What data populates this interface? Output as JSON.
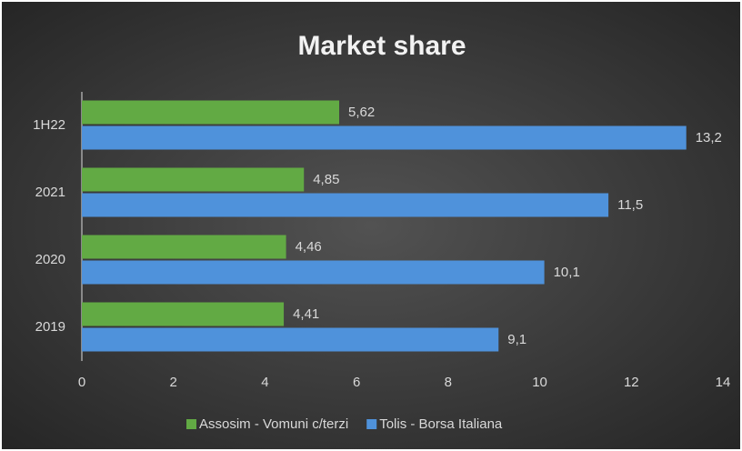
{
  "chart_data": {
    "type": "hbar",
    "title": "Market share",
    "categories": [
      "1H22",
      "2021",
      "2020",
      "2019"
    ],
    "series": [
      {
        "name": "Assosim - Vomuni c/terzi",
        "color": "#62aa44",
        "values": [
          5.62,
          4.85,
          4.46,
          4.41
        ],
        "value_labels": [
          "5,62",
          "4,85",
          "4,46",
          "4,41"
        ]
      },
      {
        "name": "Tolis - Borsa Italiana",
        "color": "#4f92db",
        "values": [
          13.2,
          11.5,
          10.1,
          9.1
        ],
        "value_labels": [
          "13,2",
          "11,5",
          "10,1",
          "9,1"
        ]
      }
    ],
    "xlim": [
      0,
      14
    ],
    "xticks": [
      0,
      2,
      4,
      6,
      8,
      10,
      12,
      14
    ],
    "grid": false,
    "legend": "bottom"
  }
}
